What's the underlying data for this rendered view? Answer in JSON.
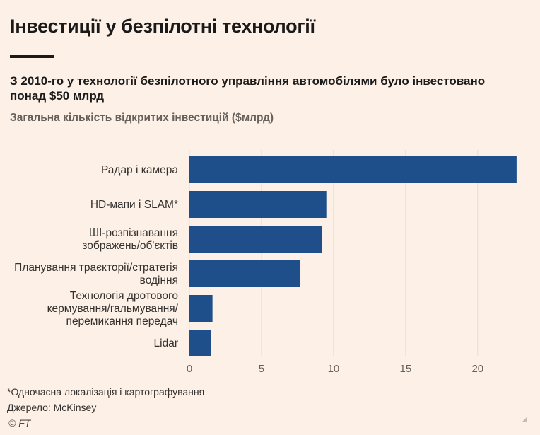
{
  "header": {
    "title": "Інвестиції у безпілотні технології",
    "subtitle": "З 2010-го у технології безпілотного управління автомобілями було інвестовано понад $50 млрд",
    "axis_description": "Загальна кількість відкритих інвестицій ($млрд)"
  },
  "footer": {
    "note": "*Одночасна локалізація і картографування",
    "source": "Джерело: McKinsey",
    "copyright": "© FT"
  },
  "colors": {
    "bar": "#1e4f8a",
    "grid": "#e6dcd3",
    "tick_text": "#66605c",
    "label_text": "#33302e"
  },
  "chart_data": {
    "type": "bar",
    "orientation": "horizontal",
    "categories": [
      [
        "Радар і камера"
      ],
      [
        "HD-мапи і SLAM*"
      ],
      [
        "ШІ-розпізнавання",
        "зображень/об'єктів"
      ],
      [
        "Планування траєкторії/стратегія",
        "водіння"
      ],
      [
        "Технологія дротового",
        "кермування/гальмування/",
        "перемикання передач"
      ],
      [
        "Lidar"
      ]
    ],
    "values": [
      22.7,
      9.5,
      9.2,
      7.7,
      1.6,
      1.5
    ],
    "xlim": [
      0,
      23
    ],
    "xticks": [
      0,
      5,
      10,
      15,
      20
    ],
    "grid": true
  }
}
